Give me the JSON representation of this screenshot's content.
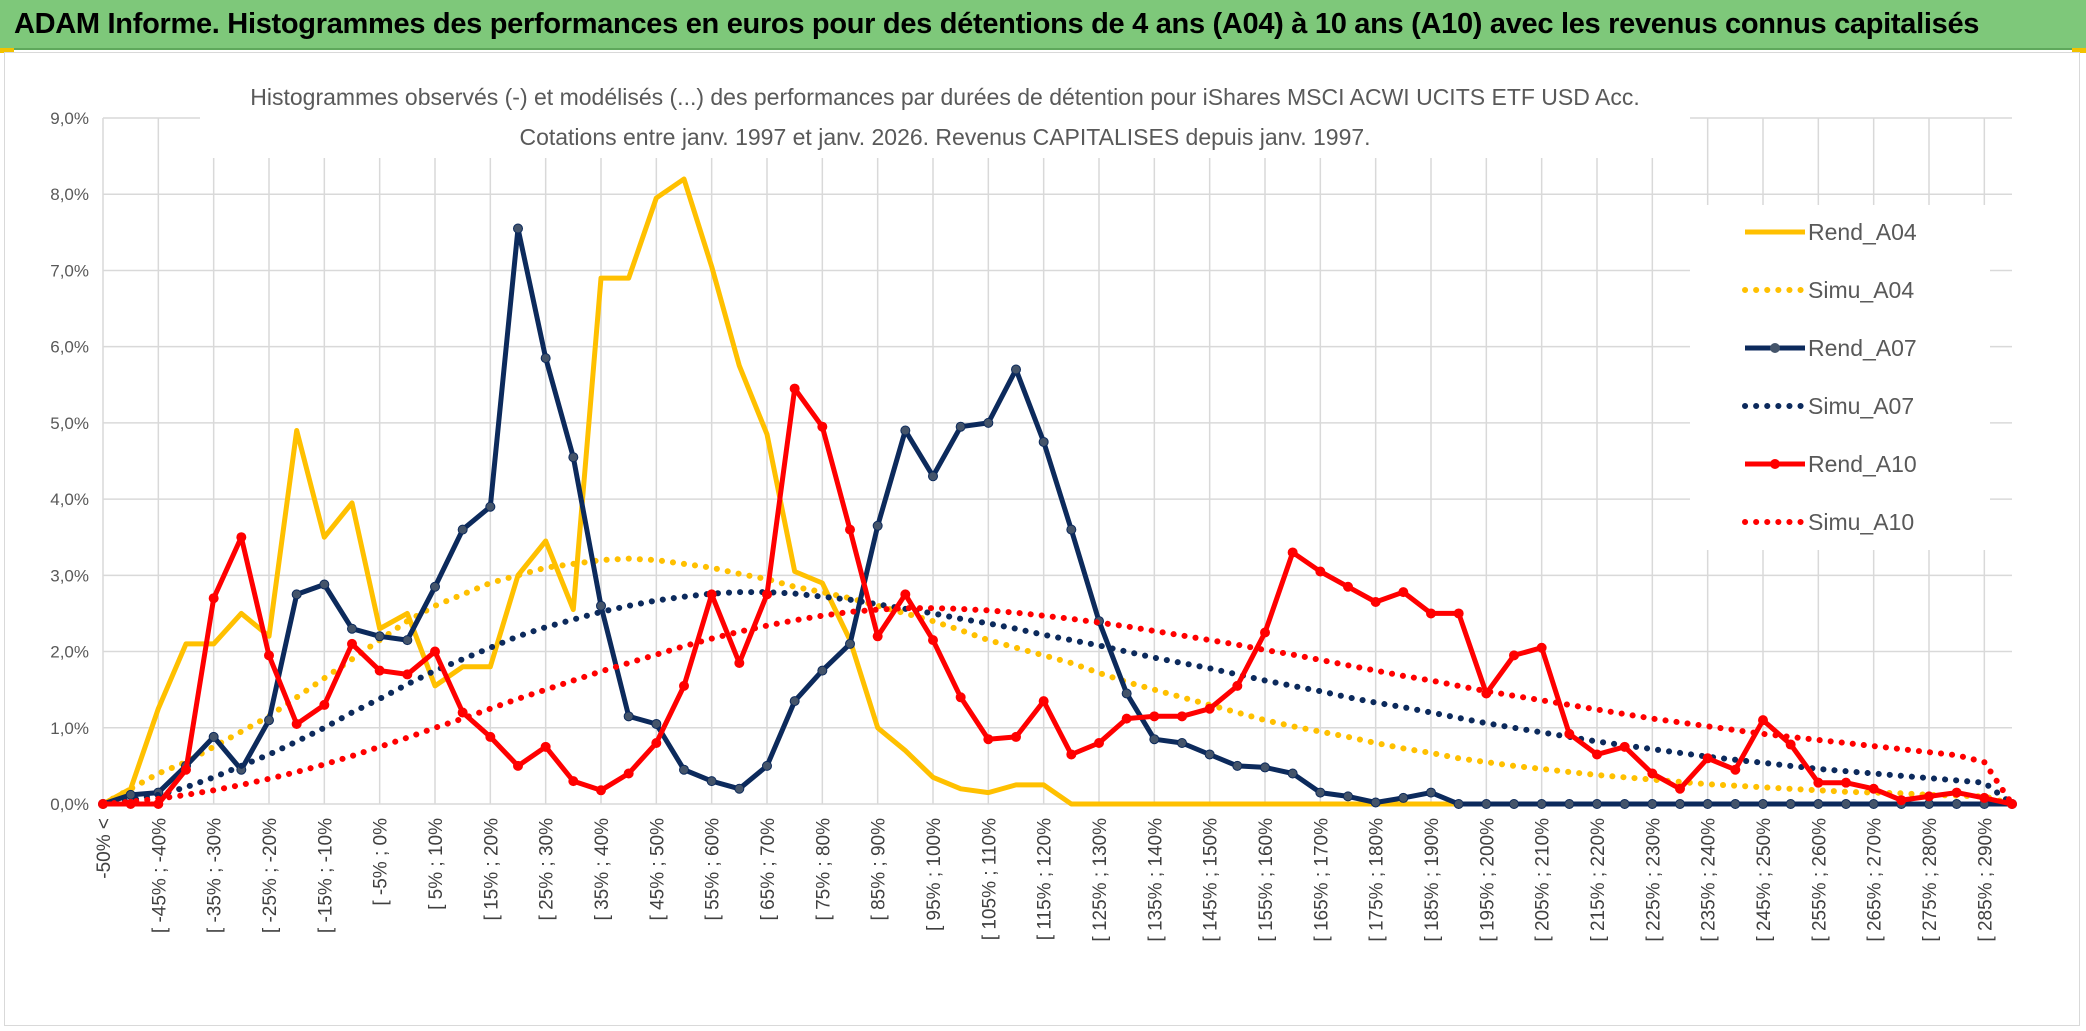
{
  "banner": {
    "title": "ADAM Informe. Histogrammes des performances en euros pour des détentions de 4 ans (A04) à 10 ans (A10) avec les revenus connus capitalisés"
  },
  "colors": {
    "banner_bg": "#7ec87a",
    "accent": "#f2c200",
    "A04": "#ffc000",
    "A07": "#0c2a5c",
    "A10": "#ff0000"
  },
  "chart_data": {
    "type": "line",
    "title": "Histogrammes observés (-) et modélisés (...) des performances par durées de détention pour iShares MSCI ACWI UCITS ETF USD Acc.",
    "subtitle": "Cotations entre janv. 1997 et janv. 2026. Revenus CAPITALISES depuis janv. 1997.",
    "xlabel": "",
    "ylabel": "",
    "ylim": [
      0,
      9
    ],
    "y_ticks": [
      "0,0%",
      "1,0%",
      "2,0%",
      "3,0%",
      "4,0%",
      "5,0%",
      "6,0%",
      "7,0%",
      "8,0%",
      "9,0%"
    ],
    "grid": true,
    "legend_position": "right",
    "x_labels": [
      "-50% <",
      "[ -45% ; -40%",
      "[ -35% ; -30%",
      "[ -25% ; -20%",
      "[ -15% ; -10%",
      "[ -5% ; 0%",
      "[ 5% ; 10%",
      "[ 15% ; 20%",
      "[ 25% ; 30%",
      "[ 35% ; 40%",
      "[ 45% ; 50%",
      "[ 55% ; 60%",
      "[ 65% ; 70%",
      "[ 75% ; 80%",
      "[ 85% ; 90%",
      "[ 95% ; 100%",
      "[ 105% ; 110%",
      "[ 115% ; 120%",
      "[ 125% ; 130%",
      "[ 135% ; 140%",
      "[ 145% ; 150%",
      "[ 155% ; 160%",
      "[ 165% ; 170%",
      "[ 175% ; 180%",
      "[ 185% ; 190%",
      "[ 195% ; 200%",
      "[ 205% ; 210%",
      "[ 215% ; 220%",
      "[ 225% ; 230%",
      "[ 235% ; 240%",
      "[ 245% ; 250%",
      "[ 255% ; 260%",
      "[ 265% ; 270%",
      "[ 275% ; 280%",
      "[ 285% ; 290%"
    ],
    "series": [
      {
        "name": "Rend_A04",
        "color": "#ffc000",
        "style": "solid",
        "markers": false,
        "values": [
          0.0,
          0.2,
          1.25,
          2.1,
          2.1,
          2.5,
          2.2,
          4.9,
          3.5,
          3.95,
          2.3,
          2.5,
          1.55,
          1.8,
          1.8,
          3.0,
          3.45,
          2.55,
          6.9,
          6.9,
          7.95,
          8.2,
          7.05,
          5.75,
          4.85,
          3.05,
          2.9,
          2.15,
          1.0,
          0.7,
          0.35,
          0.2,
          0.15,
          0.25,
          0.25,
          0.0,
          0,
          0,
          0,
          0,
          0,
          0,
          0,
          0,
          0,
          0,
          0,
          0,
          0,
          0,
          0,
          0,
          0,
          0,
          0,
          0,
          0,
          0,
          0,
          0,
          0,
          0,
          0,
          0,
          0,
          0,
          0,
          0,
          0,
          0
        ]
      },
      {
        "name": "Simu_A04",
        "color": "#ffc000",
        "style": "dotted",
        "markers": false,
        "values": [
          0.0,
          0.2,
          0.4,
          0.55,
          0.75,
          0.95,
          1.15,
          1.4,
          1.65,
          1.9,
          2.15,
          2.4,
          2.6,
          2.75,
          2.9,
          3.0,
          3.1,
          3.15,
          3.2,
          3.22,
          3.2,
          3.15,
          3.1,
          3.02,
          2.95,
          2.85,
          2.78,
          2.7,
          2.6,
          2.5,
          2.4,
          2.28,
          2.15,
          2.05,
          1.95,
          1.85,
          1.72,
          1.6,
          1.5,
          1.4,
          1.3,
          1.2,
          1.1,
          1.02,
          0.95,
          0.88,
          0.8,
          0.73,
          0.67,
          0.6,
          0.55,
          0.5,
          0.46,
          0.42,
          0.38,
          0.35,
          0.32,
          0.29,
          0.26,
          0.24,
          0.22,
          0.2,
          0.18,
          0.16,
          0.15,
          0.14,
          0.12,
          0.11,
          0.1,
          0.0
        ]
      },
      {
        "name": "Rend_A07",
        "color": "#0c2a5c",
        "style": "solid",
        "markers": true,
        "values": [
          0.0,
          0.12,
          0.15,
          0.5,
          0.88,
          0.45,
          1.1,
          2.75,
          2.88,
          2.3,
          2.2,
          2.15,
          2.85,
          3.6,
          3.9,
          7.55,
          5.85,
          4.55,
          2.6,
          1.15,
          1.05,
          0.45,
          0.3,
          0.2,
          0.5,
          1.35,
          1.75,
          2.1,
          3.65,
          4.9,
          4.3,
          4.95,
          5.0,
          5.7,
          4.75,
          3.6,
          2.4,
          1.45,
          0.85,
          0.8,
          0.65,
          0.5,
          0.48,
          0.4,
          0.15,
          0.1,
          0.02,
          0.08,
          0.15,
          0.0,
          0,
          0,
          0,
          0,
          0,
          0,
          0,
          0,
          0,
          0,
          0,
          0,
          0,
          0,
          0,
          0,
          0,
          0,
          0,
          0
        ]
      },
      {
        "name": "Simu_A07",
        "color": "#0c2a5c",
        "style": "dotted",
        "markers": false,
        "values": [
          0.0,
          0.05,
          0.12,
          0.22,
          0.35,
          0.5,
          0.65,
          0.82,
          1.0,
          1.2,
          1.38,
          1.57,
          1.75,
          1.9,
          2.05,
          2.2,
          2.32,
          2.42,
          2.52,
          2.6,
          2.67,
          2.72,
          2.76,
          2.78,
          2.78,
          2.76,
          2.72,
          2.68,
          2.62,
          2.56,
          2.5,
          2.43,
          2.37,
          2.3,
          2.22,
          2.15,
          2.08,
          2.0,
          1.92,
          1.85,
          1.78,
          1.7,
          1.62,
          1.55,
          1.48,
          1.4,
          1.33,
          1.27,
          1.2,
          1.13,
          1.06,
          1.0,
          0.94,
          0.88,
          0.82,
          0.77,
          0.72,
          0.67,
          0.62,
          0.58,
          0.54,
          0.5,
          0.46,
          0.43,
          0.4,
          0.37,
          0.34,
          0.31,
          0.28,
          0.0
        ]
      },
      {
        "name": "Rend_A10",
        "color": "#ff0000",
        "style": "solid",
        "markers": true,
        "values": [
          0.0,
          0.0,
          0.0,
          0.45,
          2.7,
          3.5,
          1.95,
          1.05,
          1.3,
          2.1,
          1.75,
          1.7,
          2.0,
          1.2,
          0.88,
          0.5,
          0.75,
          0.3,
          0.18,
          0.4,
          0.8,
          1.55,
          2.75,
          1.85,
          2.75,
          5.45,
          4.95,
          3.6,
          2.2,
          2.75,
          2.15,
          1.4,
          0.85,
          0.88,
          1.35,
          0.65,
          0.8,
          1.12,
          1.15,
          1.15,
          1.25,
          1.55,
          2.25,
          3.3,
          3.05,
          2.85,
          2.65,
          2.78,
          2.5,
          2.5,
          1.45,
          1.95,
          2.05,
          0.92,
          0.65,
          0.75,
          0.4,
          0.2,
          0.6,
          0.45,
          1.1,
          0.78,
          0.28,
          0.28,
          0.2,
          0.05,
          0.1,
          0.15,
          0.08,
          0.0
        ]
      },
      {
        "name": "Simu_A10",
        "color": "#ff0000",
        "style": "dotted",
        "markers": false,
        "values": [
          0.0,
          0.03,
          0.07,
          0.12,
          0.18,
          0.25,
          0.33,
          0.42,
          0.52,
          0.63,
          0.75,
          0.87,
          1.0,
          1.12,
          1.25,
          1.38,
          1.5,
          1.62,
          1.74,
          1.85,
          1.96,
          2.07,
          2.17,
          2.26,
          2.34,
          2.41,
          2.47,
          2.52,
          2.55,
          2.57,
          2.57,
          2.56,
          2.54,
          2.51,
          2.47,
          2.43,
          2.38,
          2.33,
          2.27,
          2.21,
          2.15,
          2.09,
          2.02,
          1.96,
          1.89,
          1.82,
          1.75,
          1.68,
          1.62,
          1.55,
          1.48,
          1.42,
          1.36,
          1.3,
          1.24,
          1.18,
          1.12,
          1.07,
          1.02,
          0.97,
          0.92,
          0.88,
          0.84,
          0.8,
          0.76,
          0.72,
          0.68,
          0.64,
          0.55,
          0.0
        ]
      }
    ]
  }
}
